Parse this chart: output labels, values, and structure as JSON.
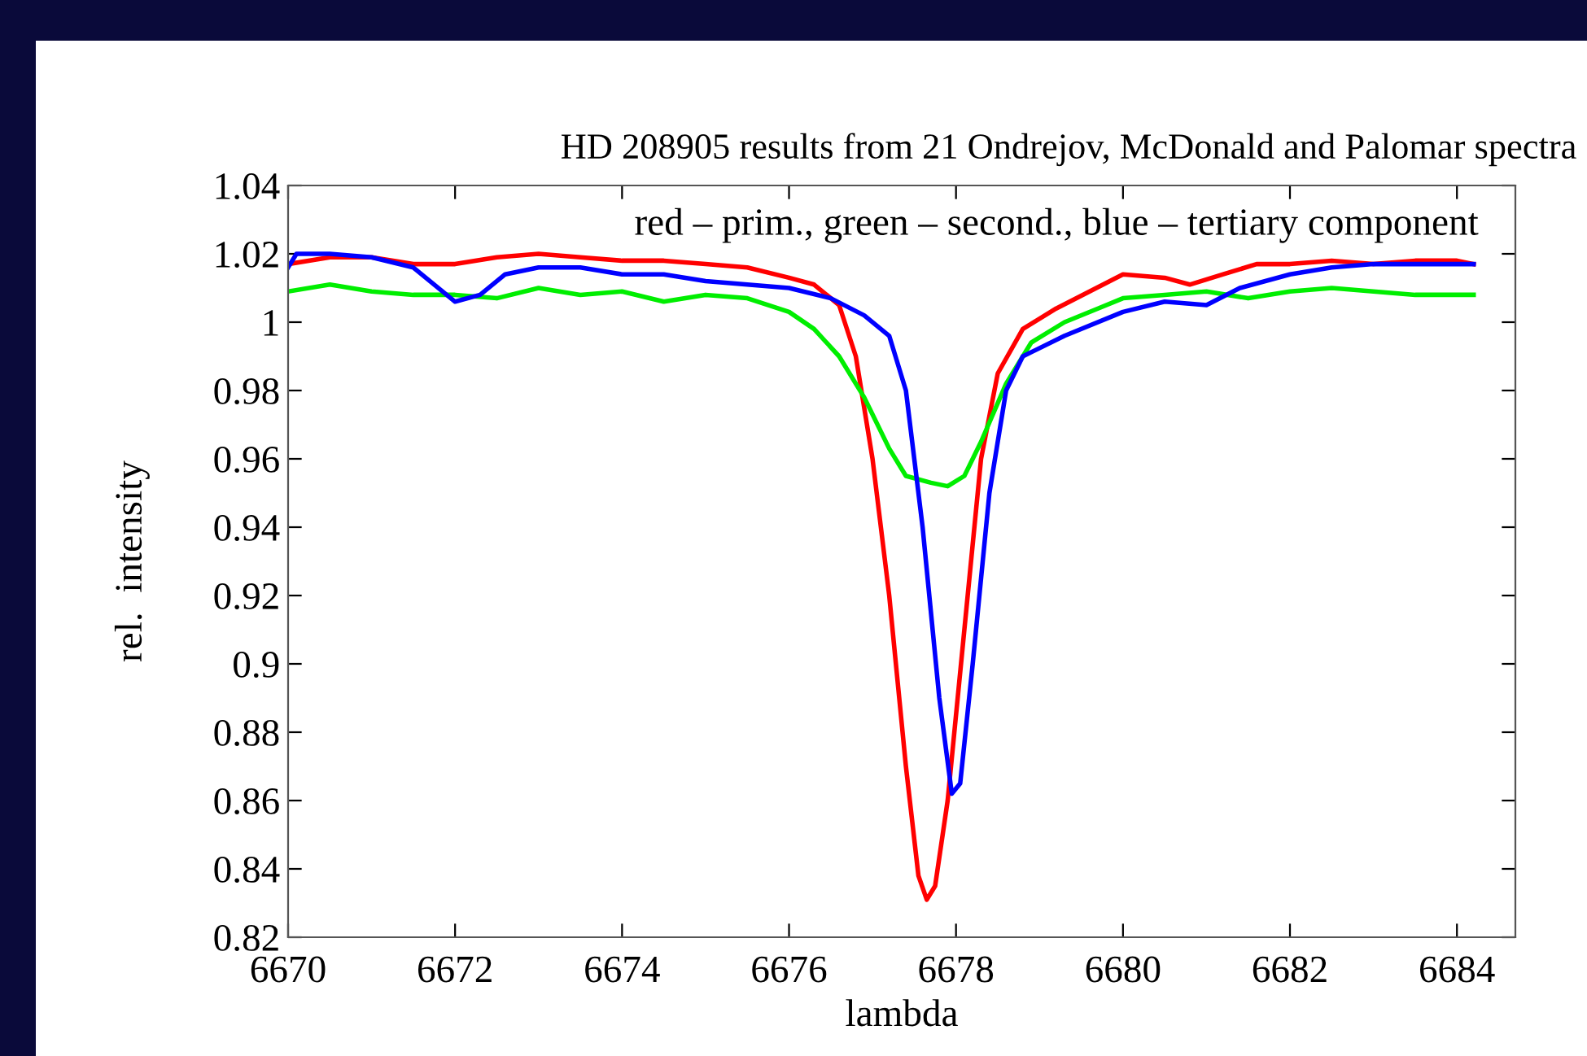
{
  "chart_data": {
    "type": "line",
    "title": "HD 208905 results from 21 Ondrejov, McDonald and Palomar spectra",
    "xlabel": "lambda",
    "ylabel": "rel.  intensity",
    "annotations": [
      "red – prim., green – second., blue – tertiary component"
    ],
    "xlim": [
      6670,
      6684.7
    ],
    "xticks": [
      6670,
      6672,
      6674,
      6676,
      6678,
      6680,
      6682,
      6684
    ],
    "ylim": [
      0.82,
      1.04
    ],
    "yticks": [
      0.82,
      0.84,
      0.86,
      0.88,
      0.9,
      0.92,
      0.94,
      0.96,
      0.98,
      {
        "value": 1,
        "label": "1"
      },
      1.02,
      1.04
    ],
    "grid": false,
    "legend": false,
    "marker": "none",
    "line_style": "solid",
    "series": [
      {
        "color": "#ff0000",
        "x": [
          6670,
          6670.5,
          6671,
          6671.5,
          6672,
          6672.5,
          6673,
          6673.5,
          6674,
          6674.5,
          6675,
          6675.5,
          6676,
          6676.3,
          6676.6,
          6676.8,
          6677.0,
          6677.2,
          6677.4,
          6677.55,
          6677.65,
          6677.75,
          6677.9,
          6678.1,
          6678.3,
          6678.5,
          6678.8,
          6679.2,
          6679.6,
          6680,
          6680.5,
          6680.8,
          6681.2,
          6681.6,
          6682,
          6682.5,
          6683,
          6683.5,
          6684,
          6684.2
        ],
        "values": [
          1.017,
          1.019,
          1.019,
          1.017,
          1.017,
          1.019,
          1.02,
          1.019,
          1.018,
          1.018,
          1.017,
          1.016,
          1.013,
          1.011,
          1.005,
          0.99,
          0.96,
          0.92,
          0.87,
          0.838,
          0.831,
          0.835,
          0.86,
          0.91,
          0.96,
          0.985,
          0.998,
          1.004,
          1.009,
          1.014,
          1.013,
          1.011,
          1.014,
          1.017,
          1.017,
          1.018,
          1.017,
          1.018,
          1.018,
          1.017
        ]
      },
      {
        "color": "#00ee00",
        "x": [
          6670,
          6670.5,
          6671,
          6671.5,
          6672,
          6672.5,
          6673,
          6673.5,
          6674,
          6674.5,
          6675,
          6675.5,
          6676,
          6676.3,
          6676.6,
          6676.9,
          6677.2,
          6677.4,
          6677.7,
          6677.9,
          6678.1,
          6678.3,
          6678.6,
          6678.9,
          6679.3,
          6679.7,
          6680,
          6680.5,
          6681,
          6681.5,
          6682,
          6682.5,
          6683,
          6683.5,
          6684,
          6684.2
        ],
        "values": [
          1.009,
          1.011,
          1.009,
          1.008,
          1.008,
          1.007,
          1.01,
          1.008,
          1.009,
          1.006,
          1.008,
          1.007,
          1.003,
          0.998,
          0.99,
          0.978,
          0.963,
          0.955,
          0.953,
          0.952,
          0.955,
          0.965,
          0.982,
          0.994,
          1.0,
          1.004,
          1.007,
          1.008,
          1.009,
          1.007,
          1.009,
          1.01,
          1.009,
          1.008,
          1.008,
          1.008
        ]
      },
      {
        "color": "#0000ff",
        "x": [
          6670,
          6670.1,
          6670.5,
          6671,
          6671.5,
          6672,
          6672.3,
          6672.6,
          6673,
          6673.5,
          6674,
          6674.5,
          6675,
          6675.5,
          6676,
          6676.5,
          6676.9,
          6677.2,
          6677.4,
          6677.6,
          6677.8,
          6677.95,
          6678.05,
          6678.2,
          6678.4,
          6678.6,
          6678.8,
          6679.3,
          6680,
          6680.5,
          6681,
          6681.4,
          6682,
          6682.5,
          6683,
          6683.5,
          6684,
          6684.2
        ],
        "values": [
          1.016,
          1.02,
          1.02,
          1.019,
          1.016,
          1.006,
          1.008,
          1.014,
          1.016,
          1.016,
          1.014,
          1.014,
          1.012,
          1.011,
          1.01,
          1.007,
          1.002,
          0.996,
          0.98,
          0.94,
          0.89,
          0.862,
          0.865,
          0.9,
          0.95,
          0.98,
          0.99,
          0.996,
          1.003,
          1.006,
          1.005,
          1.01,
          1.014,
          1.016,
          1.017,
          1.017,
          1.017,
          1.017
        ]
      }
    ]
  }
}
